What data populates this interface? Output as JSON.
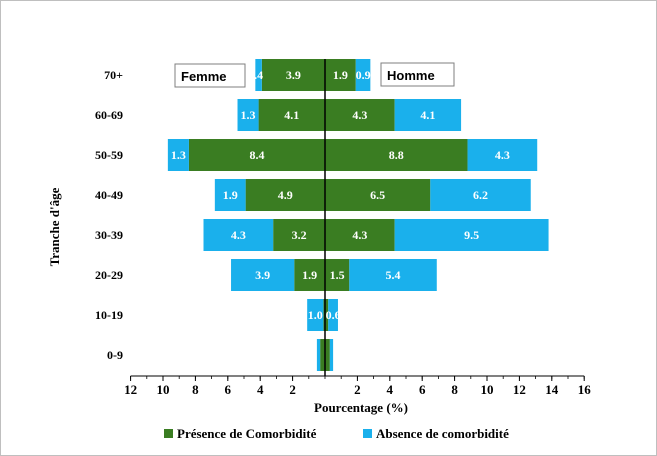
{
  "chart_data": {
    "type": "bar",
    "orientation": "horizontal-population-pyramid",
    "categories": [
      "0-9",
      "10-19",
      "20-29",
      "30-39",
      "40-49",
      "50-59",
      "60-69",
      "70+"
    ],
    "groups": [
      "Femme",
      "Homme"
    ],
    "series": [
      {
        "name": "Présence de Comorbidité",
        "color": "#3a7d22",
        "femme": [
          0.3,
          0.1,
          1.9,
          3.2,
          4.9,
          8.4,
          4.1,
          3.9
        ],
        "homme": [
          0.3,
          0.2,
          1.5,
          4.3,
          6.5,
          8.8,
          4.3,
          1.9
        ],
        "femme_labels": [
          "",
          "",
          "1.9",
          "3.2",
          "4.9",
          "8.4",
          "4.1",
          "3.9"
        ],
        "homme_labels": [
          "",
          "",
          "1.5",
          "4.3",
          "6.5",
          "8.8",
          "4.3",
          "1.9"
        ]
      },
      {
        "name": "Absence de comorbidité",
        "color": "#1ab0ec",
        "femme": [
          0.2,
          1.0,
          3.9,
          4.3,
          1.9,
          1.3,
          1.3,
          0.4
        ],
        "homme": [
          0.2,
          0.6,
          5.4,
          9.5,
          6.2,
          4.3,
          4.1,
          0.9
        ],
        "femme_labels": [
          "",
          "1.0",
          "3.9",
          "4.3",
          "1.9",
          "1.3",
          "1.3",
          ".4"
        ],
        "homme_labels": [
          "",
          "0.6",
          "5.4",
          "9.5",
          "6.2",
          "4.3",
          "4.1",
          "0.9"
        ]
      }
    ],
    "x_ticks_left": [
      "12",
      "10",
      "8",
      "6",
      "4",
      "2"
    ],
    "x_ticks_right": [
      "2",
      "4",
      "6",
      "8",
      "10",
      "12",
      "14",
      "16"
    ],
    "xlim_left": 12,
    "xlim_right": 16,
    "xlabel": "Pourcentage (%)",
    "ylabel": "Tranche d'âge",
    "legend_position": "bottom",
    "grid": false
  }
}
